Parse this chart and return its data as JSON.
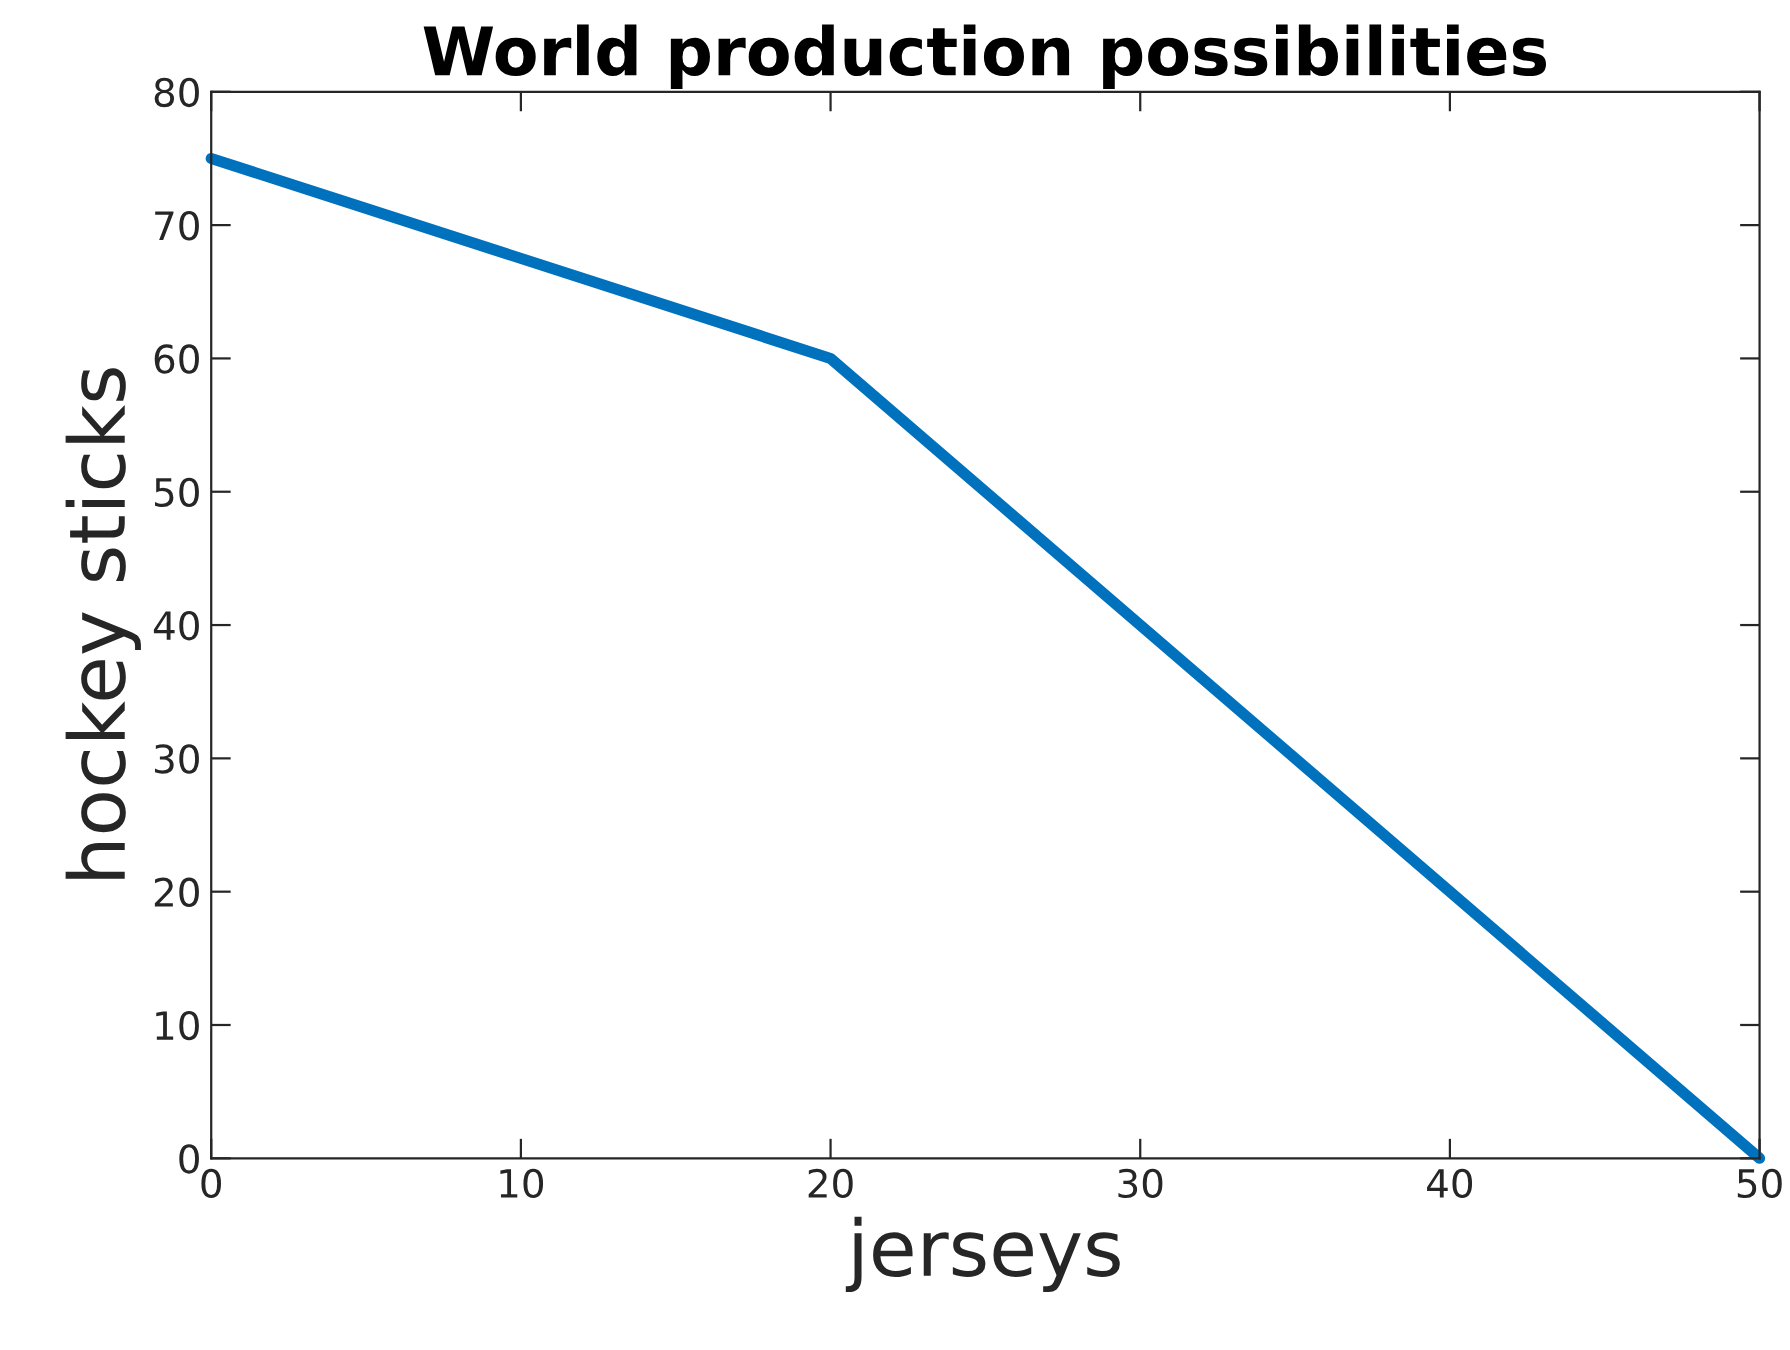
{
  "chart_data": {
    "type": "line",
    "title": "World production possibilities",
    "xlabel": "jerseys",
    "ylabel": "hockey sticks",
    "x": [
      0,
      20,
      50
    ],
    "series": [
      {
        "color": "#0072bd",
        "values": [
          75,
          60,
          0
        ]
      }
    ],
    "xlim": [
      0,
      50
    ],
    "xticks": [
      0,
      10,
      20,
      30,
      40,
      50
    ],
    "ylim": [
      0,
      80
    ],
    "yticks": [
      0,
      10,
      20,
      30,
      40,
      50,
      60,
      70,
      80
    ],
    "grid": false,
    "legend": false
  }
}
